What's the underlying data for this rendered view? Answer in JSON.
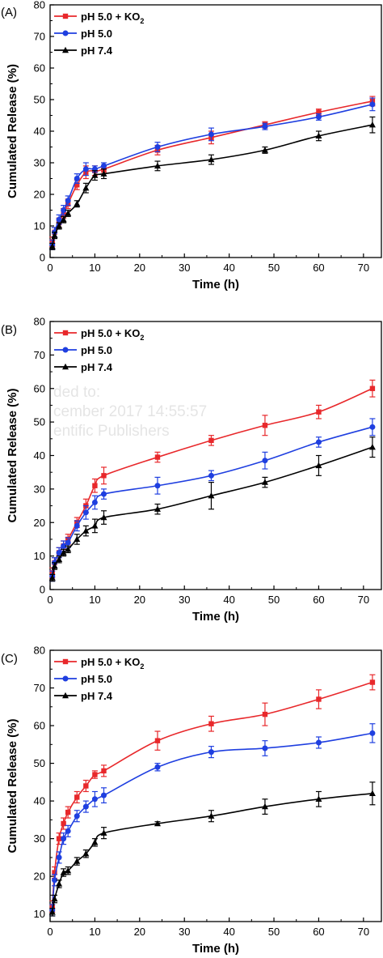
{
  "chart_data": [
    {
      "type": "line",
      "panel_label": "(A)",
      "xlabel": "Time (h)",
      "ylabel": "Cumulated Release (%)",
      "xlim": [
        0,
        74
      ],
      "ylim": [
        0,
        80
      ],
      "xticks": [
        0,
        10,
        20,
        30,
        40,
        50,
        60,
        70
      ],
      "yticks": [
        0,
        10,
        20,
        30,
        40,
        50,
        60,
        70,
        80
      ],
      "legend_position": "top-left",
      "series": [
        {
          "name": "pH 5.0 + KO2",
          "legend_main": "pH 5.0 + KO",
          "legend_sub": "2",
          "color": "#e8282b",
          "marker": "square",
          "x": [
            0.5,
            1,
            2,
            3,
            4,
            6,
            8,
            10,
            12,
            24,
            36,
            48,
            60,
            72
          ],
          "y": [
            5,
            8,
            11,
            14,
            17,
            23,
            27,
            27.5,
            28,
            34,
            38,
            42,
            46,
            49.5
          ],
          "err": [
            1.5,
            1.5,
            1.5,
            1.5,
            1.5,
            1.5,
            2,
            1.5,
            1,
            1.5,
            2,
            1,
            1,
            1.5
          ]
        },
        {
          "name": "pH 5.0",
          "legend_main": "pH 5.0",
          "legend_sub": "",
          "color": "#1f3fe0",
          "marker": "circle",
          "x": [
            0.5,
            1,
            2,
            3,
            4,
            6,
            8,
            10,
            12,
            24,
            36,
            48,
            60,
            72
          ],
          "y": [
            4,
            8,
            12,
            15,
            18,
            25,
            28,
            28,
            29,
            35,
            39,
            41.5,
            44.5,
            48.5
          ],
          "err": [
            1.5,
            1.5,
            1.5,
            1.5,
            1.5,
            1.5,
            2,
            1,
            1,
            1.5,
            2,
            1,
            1,
            2
          ]
        },
        {
          "name": "pH 7.4",
          "legend_main": "pH 7.4",
          "legend_sub": "",
          "color": "#000000",
          "marker": "triangle",
          "x": [
            0.5,
            1,
            2,
            3,
            4,
            6,
            8,
            10,
            12,
            24,
            36,
            48,
            60,
            72
          ],
          "y": [
            3.5,
            7,
            10,
            12,
            14,
            17,
            22,
            26,
            26.5,
            29,
            31,
            34,
            38.5,
            42
          ],
          "err": [
            1,
            1,
            1,
            1,
            1,
            1,
            1.5,
            1.5,
            1.5,
            1.5,
            1.5,
            1,
            1.5,
            2.5
          ]
        }
      ]
    },
    {
      "type": "line",
      "panel_label": "(B)",
      "xlabel": "Time (h)",
      "ylabel": "Cumulated Release (%)",
      "xlim": [
        0,
        74
      ],
      "ylim": [
        0,
        80
      ],
      "xticks": [
        0,
        10,
        20,
        30,
        40,
        50,
        60,
        70
      ],
      "yticks": [
        0,
        10,
        20,
        30,
        40,
        50,
        60,
        70,
        80
      ],
      "legend_position": "top-left",
      "watermark": [
        "ded to:",
        "cember 2017 14:55:57",
        "entific Publishers"
      ],
      "series": [
        {
          "name": "pH 5.0 + KO2",
          "legend_main": "pH 5.0 + KO",
          "legend_sub": "2",
          "color": "#e8282b",
          "marker": "square",
          "x": [
            0.5,
            1,
            2,
            3,
            4,
            6,
            8,
            10,
            12,
            24,
            36,
            48,
            60,
            72
          ],
          "y": [
            5,
            8,
            11,
            13,
            15,
            20,
            25,
            31,
            34,
            39.5,
            44.5,
            49,
            53,
            60
          ],
          "err": [
            1.5,
            1.5,
            1.5,
            1.5,
            1.5,
            1.5,
            2,
            2,
            2.5,
            1.5,
            1.5,
            3,
            2,
            2.5
          ]
        },
        {
          "name": "pH 5.0",
          "legend_main": "pH 5.0",
          "legend_sub": "",
          "color": "#1f3fe0",
          "marker": "circle",
          "x": [
            0.5,
            1,
            2,
            3,
            4,
            6,
            8,
            10,
            12,
            24,
            36,
            48,
            60,
            72
          ],
          "y": [
            4,
            8,
            11,
            13,
            14,
            19,
            23,
            26,
            28.5,
            31,
            34,
            38.5,
            44,
            48.5
          ],
          "err": [
            1.5,
            1.5,
            1.5,
            1.5,
            1.5,
            1.5,
            2,
            2,
            1.5,
            2.5,
            1.5,
            2.5,
            1.5,
            2.5
          ]
        },
        {
          "name": "pH 7.4",
          "legend_main": "pH 7.4",
          "legend_sub": "",
          "color": "#000000",
          "marker": "triangle",
          "x": [
            0.5,
            1,
            2,
            3,
            4,
            6,
            8,
            10,
            12,
            24,
            36,
            48,
            60,
            72
          ],
          "y": [
            3.5,
            7,
            9,
            11,
            12,
            15,
            17.5,
            19,
            21.5,
            24,
            28,
            32,
            37,
            42.5
          ],
          "err": [
            1,
            1,
            1,
            1,
            1,
            1.5,
            1.5,
            2,
            2,
            1.5,
            4,
            1.5,
            3,
            3
          ]
        }
      ]
    },
    {
      "type": "line",
      "panel_label": "(C)",
      "xlabel": "Time (h)",
      "ylabel": "Cumulated Release (%)",
      "xlim": [
        0,
        74
      ],
      "ylim": [
        8,
        80
      ],
      "xticks": [
        0,
        10,
        20,
        30,
        40,
        50,
        60,
        70
      ],
      "yticks": [
        10,
        20,
        30,
        40,
        50,
        60,
        70,
        80
      ],
      "legend_position": "top-left",
      "series": [
        {
          "name": "pH 5.0 + KO2",
          "legend_main": "pH 5.0 + KO",
          "legend_sub": "2",
          "color": "#e8282b",
          "marker": "square",
          "x": [
            0.5,
            1,
            2,
            3,
            4,
            6,
            8,
            10,
            12,
            24,
            36,
            48,
            60,
            72
          ],
          "y": [
            12,
            21,
            30,
            34,
            37,
            41,
            44,
            47,
            48,
            56,
            60.5,
            63,
            67,
            71.5
          ],
          "err": [
            1.5,
            1.5,
            1.5,
            1.5,
            1.5,
            1.5,
            1.5,
            1,
            1.5,
            2.5,
            2,
            3,
            2.5,
            2
          ]
        },
        {
          "name": "pH 5.0",
          "legend_main": "pH 5.0",
          "legend_sub": "",
          "color": "#1f3fe0",
          "marker": "circle",
          "x": [
            0.5,
            1,
            2,
            3,
            4,
            6,
            8,
            10,
            12,
            24,
            36,
            48,
            60,
            72
          ],
          "y": [
            11,
            19,
            25,
            30,
            32,
            36,
            38.5,
            40.5,
            41.5,
            49,
            53,
            54,
            55.5,
            58
          ],
          "err": [
            1.5,
            1.5,
            1.5,
            1.5,
            1.5,
            1.5,
            1.5,
            2,
            2,
            1,
            1.5,
            2,
            1.5,
            2.5
          ]
        },
        {
          "name": "pH 7.4",
          "legend_main": "pH 7.4",
          "legend_sub": "",
          "color": "#000000",
          "marker": "triangle",
          "x": [
            0.5,
            1,
            2,
            3,
            4,
            6,
            8,
            10,
            12,
            24,
            36,
            48,
            60,
            72
          ],
          "y": [
            10.5,
            14,
            18,
            21,
            21.5,
            24,
            26,
            29,
            31.5,
            34,
            36,
            38.5,
            40.5,
            42
          ],
          "err": [
            1,
            1,
            1,
            1,
            1,
            1,
            1,
            1,
            1.5,
            0.5,
            1.5,
            2,
            2,
            3
          ]
        }
      ]
    }
  ]
}
